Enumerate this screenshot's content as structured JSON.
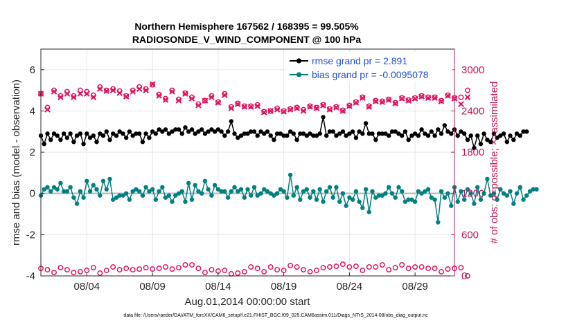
{
  "chart_data": {
    "type": "line",
    "title_line1": "Northern Hemisphere 167562 / 168395 = 99.505%",
    "title_line2": "RADIOSONDE_V_WIND_COMPONENT @ 100 hPa",
    "ylabel": "rmse and bias (model - observation)",
    "ylabel_right": "# of obs: o=possible; ×=assimilated",
    "xlabel": "Aug.01,2014 00:00:00 start",
    "footnote": "data file: /Users/raeder/DAI/ATM_forcXX/CAM6_setup/f.e21.FHIST_BGC.f09_025.CAM6assim.011/Diags_NTrS_2014-08/obs_diag_output.nc",
    "ylim": [
      -4,
      7
    ],
    "ylim_right": [
      0,
      3300
    ],
    "xlim": [
      0.5,
      32.0
    ],
    "yticks": [
      "-4",
      "-2",
      "0",
      "2",
      "4",
      "6"
    ],
    "yticks_right": [
      "0",
      "600",
      "1200",
      "1800",
      "2400",
      "3000"
    ],
    "xticks": [
      {
        "day": 4,
        "label": "08/04"
      },
      {
        "day": 9,
        "label": "08/09"
      },
      {
        "day": 14,
        "label": "08/14"
      },
      {
        "day": 19,
        "label": "08/19"
      },
      {
        "day": 24,
        "label": "08/24"
      },
      {
        "day": 29,
        "label": "08/29"
      }
    ],
    "legend": [
      {
        "label": "rmse grand pr = 2.891",
        "color": "#000000"
      },
      {
        "label": "bias grand pr = -0.0095078",
        "color": "#008080"
      }
    ],
    "series": [
      {
        "name": "rmse",
        "color": "#000000",
        "axis": "left",
        "x_start": 0.5,
        "x_step": 0.25,
        "values": [
          2.8,
          2.4,
          2.9,
          2.6,
          2.9,
          2.8,
          2.6,
          2.9,
          2.7,
          2.9,
          2.5,
          2.8,
          2.9,
          2.4,
          2.9,
          2.7,
          2.8,
          2.5,
          2.9,
          2.8,
          3.0,
          2.6,
          2.9,
          2.8,
          3.0,
          2.9,
          2.7,
          3.0,
          2.8,
          2.9,
          2.9,
          2.5,
          2.9,
          2.7,
          3.0,
          2.9,
          3.1,
          3.0,
          3.1,
          2.9,
          3.0,
          3.1,
          3.1,
          2.9,
          3.2,
          3.0,
          3.1,
          2.9,
          3.0,
          3.1,
          2.9,
          3.0,
          3.1,
          3.0,
          3.1,
          3.0,
          2.8,
          3.0,
          3.5,
          2.9,
          2.7,
          2.8,
          2.9,
          2.9,
          3.0,
          3.0,
          2.8,
          3.0,
          2.9,
          3.0,
          2.8,
          2.6,
          2.9,
          2.9,
          2.8,
          2.8,
          3.0,
          2.9,
          2.6,
          2.9,
          2.9,
          2.8,
          2.9,
          2.8,
          2.8,
          2.9,
          3.7,
          2.8,
          3.0,
          3.0,
          2.8,
          2.9,
          3.0,
          2.8,
          2.9,
          3.0,
          2.7,
          3.0,
          2.9,
          3.4,
          2.9,
          2.9,
          2.6,
          2.9,
          2.9,
          2.9,
          2.8,
          3.0,
          3.0,
          2.9,
          2.8,
          3.0,
          2.6,
          2.8,
          2.9,
          2.8,
          3.1,
          2.9,
          2.8,
          3.0,
          2.8,
          3.1,
          2.9,
          3.3,
          3.0,
          2.9,
          3.1,
          2.8,
          3.0,
          2.9,
          2.6,
          2.8,
          2.2,
          2.8,
          2.4,
          2.9,
          2.6,
          2.5,
          2.9,
          2.7,
          2.8,
          2.9,
          2.5,
          2.8,
          2.6,
          2.9,
          2.8,
          3.0,
          3.0
        ]
      },
      {
        "name": "bias",
        "color": "#008080",
        "axis": "left",
        "x_start": 0.5,
        "x_step": 0.25,
        "values": [
          -0.1,
          0.2,
          0.3,
          0.1,
          0.3,
          0.2,
          0.5,
          0.1,
          0.1,
          0.3,
          -0.2,
          -0.5,
          0.1,
          -0.2,
          0.6,
          0.1,
          0.4,
          0.2,
          -0.1,
          0.6,
          0.2,
          0.7,
          -0.3,
          -0.2,
          -0.1,
          -0.1,
          0.0,
          -0.3,
          0.1,
          0.2,
          0.1,
          -0.1,
          0.3,
          0.1,
          0.2,
          -0.3,
          0.1,
          0.3,
          -0.2,
          -0.1,
          -0.4,
          -0.1,
          0.0,
          0.1,
          -0.4,
          0.5,
          -0.3,
          0.4,
          0.1,
          0.0,
          0.6,
          0.2,
          -0.1,
          0.4,
          0.2,
          0.1,
          0.1,
          -0.2,
          0.1,
          0.3,
          0.1,
          0.2,
          -0.2,
          0.2,
          -0.1,
          0.3,
          -0.1,
          0.0,
          0.2,
          0.1,
          0.0,
          -0.1,
          0.0,
          0.2,
          0.1,
          -0.2,
          0.9,
          -0.1,
          0.3,
          -0.3,
          0.1,
          0.2,
          -0.2,
          0.1,
          -0.3,
          0.2,
          -0.4,
          0.1,
          0.3,
          -0.2,
          0.3,
          -0.4,
          0.0,
          -0.6,
          -0.2,
          -0.3,
          0.1,
          -0.4,
          -0.7,
          0.2,
          -0.9,
          0.1,
          -0.2,
          -0.1,
          -0.1,
          0.0,
          0.3,
          0.0,
          -0.2,
          0.3,
          0.1,
          -0.4,
          -0.3,
          -0.3,
          -0.4,
          0.1,
          0.0,
          0.1,
          0.2,
          -0.2,
          -0.3,
          -1.4,
          0.1,
          -0.2,
          0.0,
          -0.6,
          0.3,
          -0.4,
          0.1,
          -0.3,
          0.2,
          0.0,
          -0.5,
          0.3,
          -0.3,
          0.0,
          0.7,
          -0.1,
          0.0,
          -0.3,
          0.2,
          0.0,
          -0.1,
          0.1,
          -0.5,
          0.0,
          0.3,
          -0.3,
          -0.1,
          0.1,
          0.2,
          0.2
        ]
      },
      {
        "name": "possible",
        "color": "#e0115f",
        "axis": "right",
        "x_start": 0.5,
        "x_step": 0.5,
        "values": [
          2650,
          2450,
          2700,
          2620,
          2680,
          2620,
          2700,
          2680,
          2630,
          2750,
          2700,
          2720,
          2690,
          2620,
          2700,
          2750,
          2720,
          2780,
          2640,
          2580,
          2700,
          2570,
          2660,
          2600,
          2500,
          2550,
          2620,
          2530,
          2650,
          2460,
          2510,
          2470,
          2470,
          2490,
          2390,
          2400,
          2440,
          2400,
          2430,
          2450,
          2420,
          2470,
          2450,
          2490,
          2430,
          2460,
          2410,
          2480,
          2530,
          2600,
          2470,
          2550,
          2540,
          2570,
          2520,
          2590,
          2560,
          2590,
          2620,
          2600,
          2600,
          2550,
          2630,
          2590,
          2600,
          2700
        ]
      },
      {
        "name": "assimilated",
        "color": "#e0115f",
        "axis": "right",
        "x_start": 0.5,
        "x_step": 0.5,
        "values": [
          2650,
          2420,
          2680,
          2600,
          2650,
          2600,
          2650,
          2650,
          2600,
          2720,
          2690,
          2700,
          2660,
          2610,
          2680,
          2720,
          2700,
          2790,
          2620,
          2560,
          2680,
          2550,
          2650,
          2580,
          2480,
          2550,
          2600,
          2520,
          2630,
          2440,
          2500,
          2460,
          2460,
          2470,
          2380,
          2400,
          2420,
          2390,
          2420,
          2440,
          2400,
          2460,
          2440,
          2480,
          2420,
          2450,
          2400,
          2470,
          2520,
          2590,
          2460,
          2540,
          2530,
          2560,
          2510,
          2580,
          2550,
          2580,
          2610,
          2590,
          2590,
          2540,
          2620,
          2580,
          2500,
          2600
        ]
      },
      {
        "name": "possible-low",
        "color": "#e0115f",
        "axis": "right",
        "x_start": 0.5,
        "x_step": 0.5,
        "values": [
          110,
          90,
          50,
          120,
          90,
          50,
          60,
          80,
          120,
          40,
          80,
          130,
          90,
          110,
          90,
          100,
          120,
          100,
          110,
          130,
          100,
          120,
          160,
          160,
          110,
          50,
          90,
          70,
          80,
          30,
          40,
          60,
          130,
          110,
          60,
          130,
          90,
          80,
          150,
          130,
          90,
          60,
          80,
          120,
          130,
          140,
          170,
          130,
          140,
          80,
          130,
          130,
          160,
          90,
          120,
          160,
          110,
          130,
          130,
          110,
          110,
          60,
          100,
          110,
          120,
          0
        ]
      }
    ]
  }
}
